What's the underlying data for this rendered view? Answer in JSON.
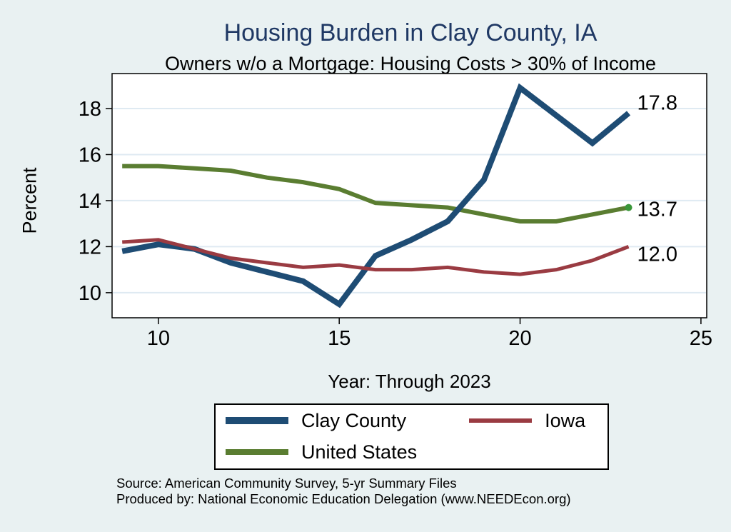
{
  "title": "Housing Burden in Clay County, IA",
  "subtitle": "Owners w/o a Mortgage: Housing Costs > 30% of Income",
  "chart_data": {
    "type": "line",
    "x": [
      9,
      10,
      11,
      12,
      13,
      14,
      15,
      16,
      17,
      18,
      19,
      20,
      21,
      22,
      23
    ],
    "x_ticks": [
      10,
      15,
      20,
      25
    ],
    "y_ticks": [
      10,
      12,
      14,
      16,
      18
    ],
    "x_range": [
      8.72,
      25.16
    ],
    "y_range": [
      8.91,
      19.52
    ],
    "xlabel": "Year: Through 2023",
    "ylabel": "Percent",
    "grid": true,
    "legend_position": "bottom",
    "series": [
      {
        "name": "Clay County",
        "color": "#1e4c74",
        "width": 8,
        "values": [
          11.8,
          12.1,
          11.9,
          11.3,
          10.9,
          10.5,
          9.5,
          11.6,
          12.3,
          13.1,
          14.9,
          18.9,
          17.7,
          16.5,
          17.8
        ],
        "end_label": "17.8"
      },
      {
        "name": "Iowa",
        "color": "#9a3b42",
        "width": 5,
        "values": [
          12.2,
          12.3,
          11.9,
          11.5,
          11.3,
          11.1,
          11.2,
          11.0,
          11.0,
          11.1,
          10.9,
          10.8,
          11.0,
          11.4,
          12.0
        ],
        "end_label": "12.0"
      },
      {
        "name": "United States",
        "color": "#5a7d31",
        "width": 6,
        "values": [
          15.5,
          15.5,
          15.4,
          15.3,
          15.0,
          14.8,
          14.5,
          13.9,
          13.8,
          13.7,
          13.4,
          13.1,
          13.1,
          13.4,
          13.7
        ],
        "end_label": "13.7",
        "end_marker": true,
        "end_marker_color": "#3a9639"
      }
    ]
  },
  "source": {
    "line1": "Source: American Community Survey, 5-yr Summary Files",
    "line2": "Produced by: National Economic Education Delegation (www.NEEDEcon.org)"
  },
  "colors": {
    "background": "#e9f1f2",
    "title": "#1f3864",
    "plot_bg": "#ffffff",
    "grid": "#dfeaf2",
    "axis": "#000000"
  }
}
